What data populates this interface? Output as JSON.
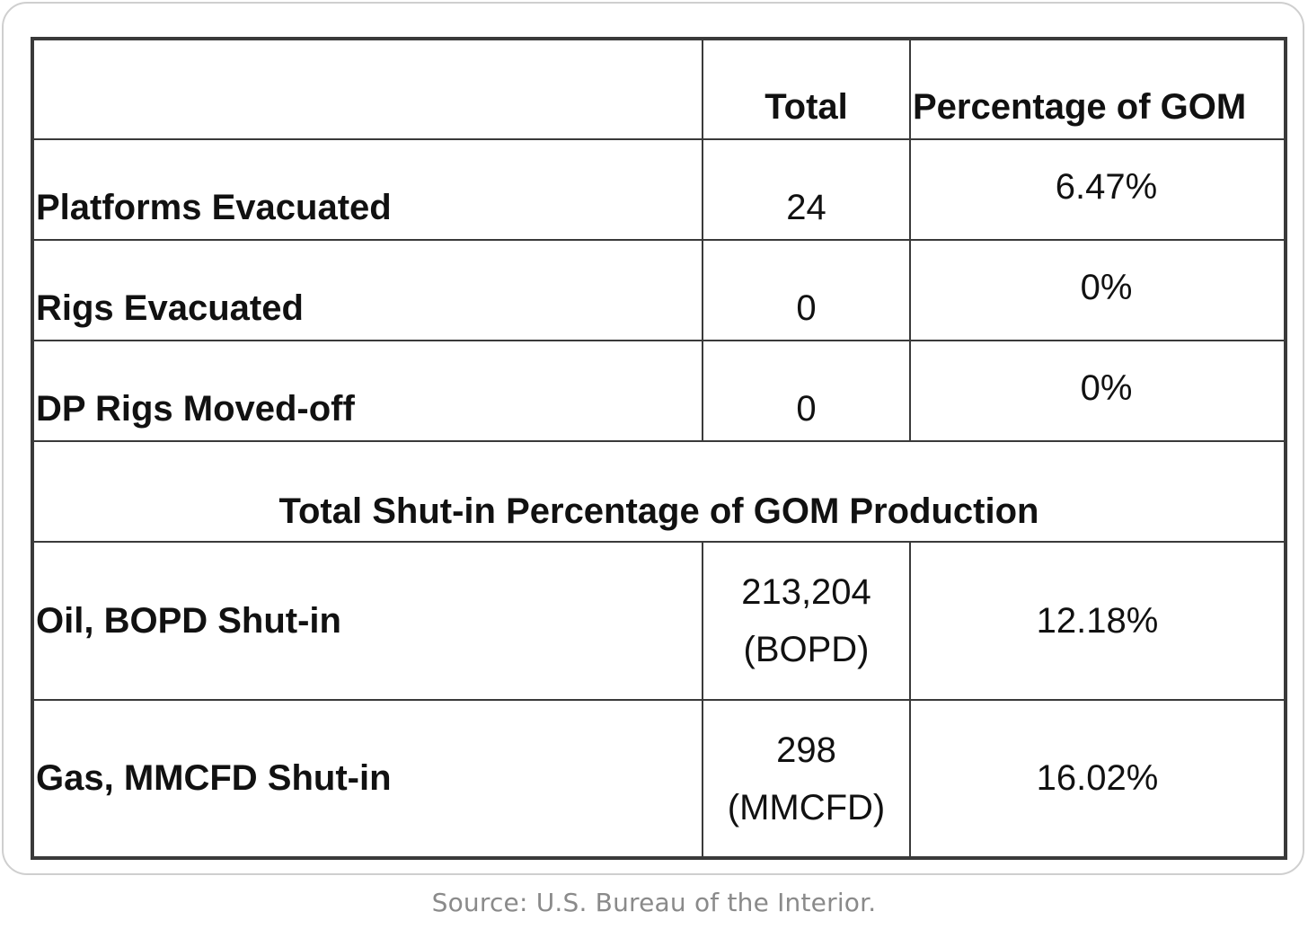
{
  "table": {
    "header": {
      "label": "",
      "total": "Total",
      "percentage": "Percentage of GOM"
    },
    "rows": [
      {
        "label": "Platforms Evacuated",
        "total": "24",
        "percentage": "6.47%"
      },
      {
        "label": "Rigs Evacuated",
        "total": "0",
        "percentage": "0%"
      },
      {
        "label": "DP Rigs Moved-off",
        "total": "0",
        "percentage": "0%"
      }
    ],
    "section_title": "Total Shut-in Percentage of GOM Production",
    "production_rows": [
      {
        "label": "Oil, BOPD Shut-in",
        "total_value": "213,204",
        "total_unit": "(BOPD)",
        "percentage": "12.18%"
      },
      {
        "label": "Gas, MMCFD Shut-in",
        "total_value": "298",
        "total_unit": "(MMCFD)",
        "percentage": "16.02%"
      }
    ]
  },
  "source": "Source: U.S. Bureau of the Interior."
}
